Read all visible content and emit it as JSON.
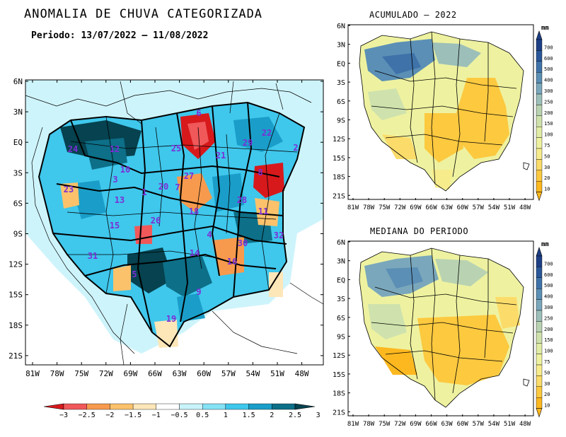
{
  "main": {
    "title": "ANOMALIA DE CHUVA CATEGORIZADA",
    "period": "Periodo: 13/07/2022 — 11/08/2022",
    "lat_labels": [
      "6N",
      "3N",
      "EQ",
      "3S",
      "6S",
      "9S",
      "12S",
      "15S",
      "18S",
      "21S"
    ],
    "lon_labels": [
      "81W",
      "78W",
      "75W",
      "72W",
      "69W",
      "66W",
      "63W",
      "60W",
      "57W",
      "54W",
      "51W",
      "48W"
    ],
    "basin_numbers": [
      {
        "id": "6",
        "color": "#7b2fd6"
      },
      {
        "id": "24",
        "color": "#7b2fd6"
      },
      {
        "id": "12",
        "color": "#7b2fd6"
      },
      {
        "id": "25",
        "color": "#7b2fd6"
      },
      {
        "id": "29",
        "color": "#7b2fd6"
      },
      {
        "id": "22",
        "color": "#7b2fd6"
      },
      {
        "id": "2",
        "color": "#7b2fd6"
      },
      {
        "id": "21",
        "color": "#7b2fd6"
      },
      {
        "id": "10",
        "color": "#7b2fd6"
      },
      {
        "id": "3",
        "color": "#7b2fd6"
      },
      {
        "id": "23",
        "color": "#7b2fd6"
      },
      {
        "id": "1",
        "color": "#7b2fd6"
      },
      {
        "id": "27",
        "color": "#7b2fd6"
      },
      {
        "id": "7",
        "color": "#7b2fd6"
      },
      {
        "id": "20",
        "color": "#7b2fd6"
      },
      {
        "id": "8",
        "color": "#7b2fd6"
      },
      {
        "id": "13",
        "color": "#7b2fd6"
      },
      {
        "id": "28",
        "color": "#7b2fd6"
      },
      {
        "id": "18",
        "color": "#7b2fd6"
      },
      {
        "id": "11",
        "color": "#7b2fd6"
      },
      {
        "id": "15",
        "color": "#7b2fd6"
      },
      {
        "id": "26",
        "color": "#7b2fd6"
      },
      {
        "id": "4",
        "color": "#7b2fd6"
      },
      {
        "id": "32",
        "color": "#7b2fd6"
      },
      {
        "id": "30",
        "color": "#7b2fd6"
      },
      {
        "id": "31",
        "color": "#7b2fd6"
      },
      {
        "id": "14",
        "color": "#7b2fd6"
      },
      {
        "id": "16",
        "color": "#7b2fd6"
      },
      {
        "id": "5",
        "color": "#7b2fd6"
      },
      {
        "id": "9",
        "color": "#7b2fd6"
      },
      {
        "id": "19",
        "color": "#7b2fd6"
      }
    ]
  },
  "colorbar": {
    "labels": [
      "−3",
      "−2.5",
      "−2",
      "−1.5",
      "−1",
      "−0.5",
      "0.5",
      "1",
      "1.5",
      "2",
      "2.5",
      "3"
    ],
    "colors": [
      "#d7191c",
      "#f0585a",
      "#f79a4d",
      "#fbc26b",
      "#fde6b8",
      "#ffffff",
      "#c9f3fb",
      "#85e2f5",
      "#3fc7ec",
      "#1a9ec9",
      "#0d6f88",
      "#06424f"
    ]
  },
  "acumulado": {
    "title": "ACUMULADO — 2022"
  },
  "mediana": {
    "title": "MEDIANA DO PERIODO"
  },
  "small_lat_labels": [
    "6N",
    "3N",
    "EQ",
    "3S",
    "6S",
    "9S",
    "12S",
    "15S",
    "18S",
    "21S"
  ],
  "small_lon_labels": [
    "81W",
    "78W",
    "75W",
    "72W",
    "69W",
    "66W",
    "63W",
    "60W",
    "57W",
    "54W",
    "51W",
    "48W"
  ],
  "mm_bar": {
    "unit": "mm",
    "labels": [
      "700",
      "600",
      "500",
      "400",
      "300",
      "250",
      "200",
      "150",
      "100",
      "75",
      "50",
      "30",
      "20",
      "10"
    ],
    "colors": [
      "#1d3f86",
      "#2a5799",
      "#3f72a9",
      "#5b8fb5",
      "#7aa7bb",
      "#9cbfb9",
      "#b9d3b2",
      "#cfe2ad",
      "#e2eca6",
      "#eef2a0",
      "#f7ec8c",
      "#fbdc6a",
      "#fcc93f",
      "#fdb81f"
    ]
  }
}
